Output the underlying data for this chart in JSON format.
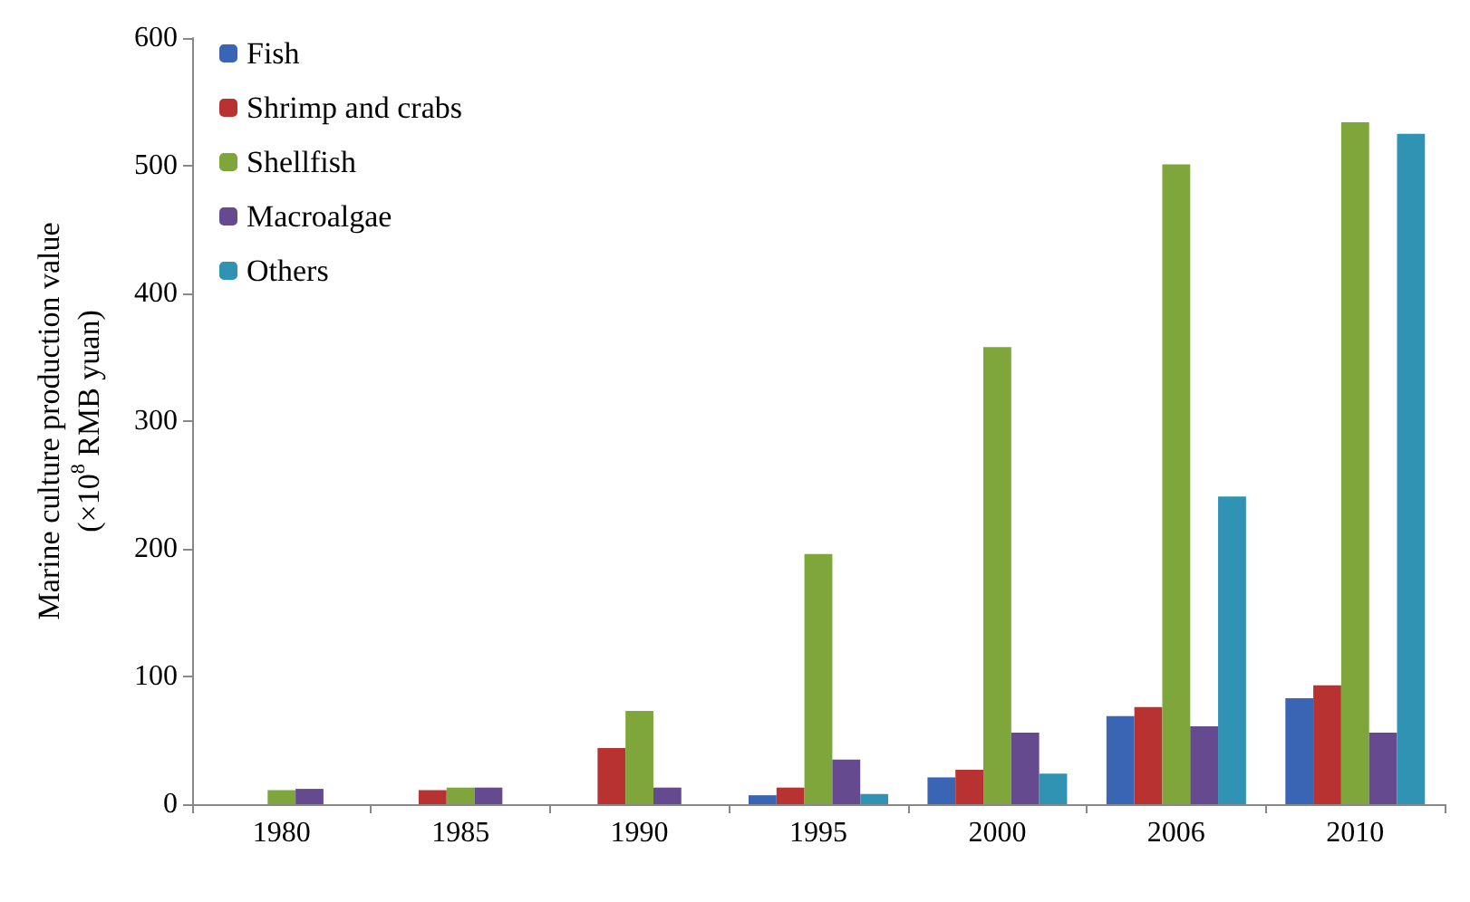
{
  "chart_data": {
    "type": "bar",
    "ylabel": "Marine culture production value\n(×10$^{8}$ RMB yuan)",
    "categories": [
      "1980",
      "1985",
      "1990",
      "1995",
      "2000",
      "2006",
      "2010"
    ],
    "series": [
      {
        "name": "Fish",
        "color": "#3a64b4",
        "values": [
          0,
          0,
          0,
          7,
          21,
          69,
          83
        ]
      },
      {
        "name": "Shrimp and crabs",
        "color": "#b83232",
        "values": [
          0,
          11,
          44,
          13,
          27,
          76,
          93
        ]
      },
      {
        "name": "Shellfish",
        "color": "#7ea63a",
        "values": [
          11,
          13,
          73,
          196,
          358,
          501,
          534
        ]
      },
      {
        "name": "Macroalgae",
        "color": "#654a90",
        "values": [
          12,
          13,
          13,
          35,
          56,
          61,
          56
        ]
      },
      {
        "name": "Others",
        "color": "#3193b4",
        "values": [
          0,
          0,
          0,
          8,
          24,
          241,
          525
        ]
      }
    ],
    "ylim": [
      0,
      600
    ],
    "yticks": [
      0,
      100,
      200,
      300,
      400,
      500,
      600
    ],
    "grid": false,
    "legend": "top left"
  }
}
